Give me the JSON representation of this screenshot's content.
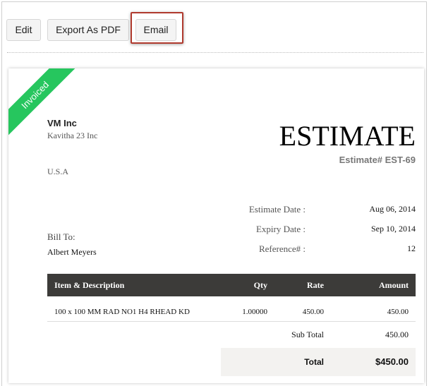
{
  "toolbar": {
    "edit": "Edit",
    "export_pdf": "Export As PDF",
    "email": "Email"
  },
  "status_ribbon": {
    "label": "Invoiced",
    "color": "#26c65e"
  },
  "estimate": {
    "company_name": "VM Inc",
    "company_line": "Kavitha 23 Inc",
    "country": "U.S.A",
    "title": "ESTIMATE",
    "number": "Estimate# EST-69",
    "bill_to_label": "Bill To:",
    "bill_to_name": "Albert Meyers",
    "fields": [
      {
        "label": "Estimate Date :",
        "value": "Aug 06, 2014"
      },
      {
        "label": "Expiry Date :",
        "value": "Sep 10, 2014"
      },
      {
        "label": "Reference# :",
        "value": "12"
      }
    ],
    "table": {
      "headers": [
        "Item & Description",
        "Qty",
        "Rate",
        "Amount"
      ],
      "rows": [
        {
          "item": "100 x 100 MM RAD NO1 H4 RHEAD KD",
          "qty": "1.00000",
          "rate": "450.00",
          "amount": "450.00"
        }
      ]
    },
    "sub_total_label": "Sub Total",
    "sub_total": "450.00",
    "total_label": "Total",
    "total": "$450.00"
  }
}
